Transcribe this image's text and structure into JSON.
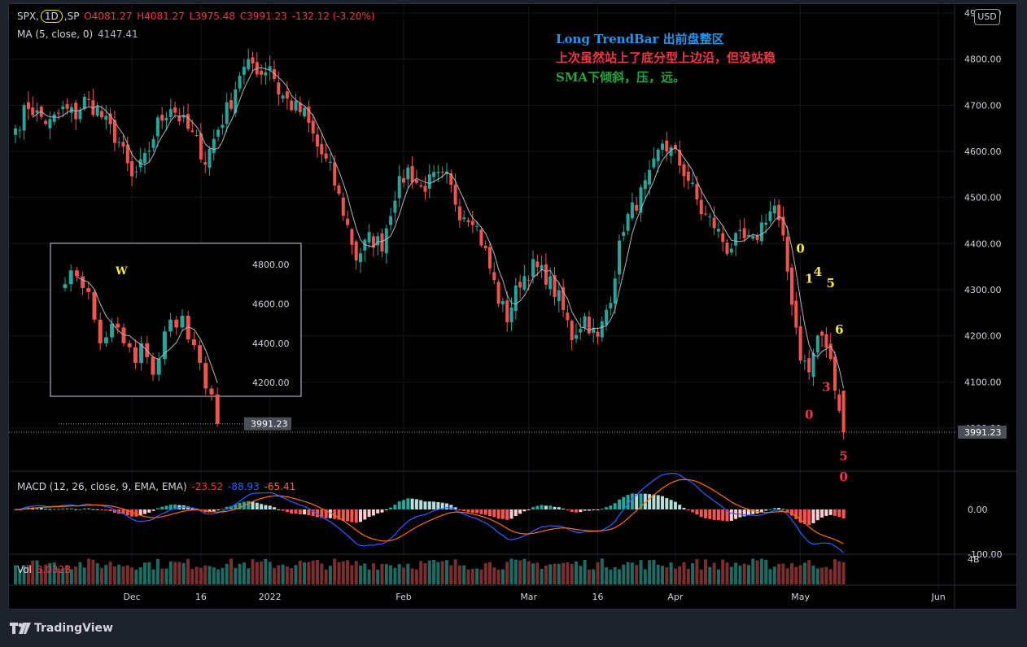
{
  "window": {
    "brand_label": "TradingView",
    "currency_button": "USD"
  },
  "legend": {
    "symbol": "SPX,",
    "interval": "1D",
    "exchange": ",SP",
    "open": "O4081.27",
    "high": "H4081.27",
    "low": "L3975.48",
    "close": "C3991.23",
    "change": "-132.12 (-3.20%)",
    "ma_label": "MA (5, close, 0)",
    "ma_value": "4147.41",
    "macd_label": "MACD (12, 26, close, 9, EMA, EMA)",
    "macd_hist": "-23.52",
    "macd_line": "-88.93",
    "macd_signal": "-65.41",
    "vol_label": "Vol",
    "vol_value": "3.032B"
  },
  "notes": [
    {
      "text": "Long TrendBar 出前盘整区",
      "color": "#2196f3"
    },
    {
      "text": "上次虽然站上了底分型上边沿，但没站稳",
      "color": "#f23645"
    },
    {
      "text": "SMA下倾斜，压，远。",
      "color": "#26a641"
    }
  ],
  "annotations": [
    {
      "text": "0",
      "color": "#ffeb3b",
      "bar": 182,
      "price": 4380
    },
    {
      "text": "1",
      "color": "#ffeb3b",
      "bar": 184,
      "price": 4315
    },
    {
      "text": "4",
      "color": "#ffeb3b",
      "bar": 186,
      "price": 4330
    },
    {
      "text": "5",
      "color": "#ffeb3b",
      "bar": 189,
      "price": 4305
    },
    {
      "text": "6",
      "color": "#ffeb3b",
      "bar": 191,
      "price": 4205
    },
    {
      "text": "3",
      "color": "#f23645",
      "bar": 188,
      "price": 4080
    },
    {
      "text": "0",
      "color": "#f23645",
      "bar": 184,
      "price": 4020
    },
    {
      "text": "5",
      "color": "#f23645",
      "bar": 192,
      "price": 3930
    },
    {
      "text": "0",
      "color": "#f23645",
      "bar": 192,
      "price": 3885
    }
  ],
  "colors": {
    "up": "#26a69a",
    "down": "#ef5350",
    "ma": "#b2b5be",
    "macd": "#2962ff",
    "signal": "#ff6d00",
    "vol_up": "#1e6b63",
    "vol_down": "#7a2e2e",
    "price_tag_bg": "#4a4e59"
  },
  "chart_data": {
    "type": "candlestick",
    "symbol": "SPX",
    "interval": "1D",
    "y_ticks": [
      "4900.00",
      "4800.00",
      "4700.00",
      "4600.00",
      "4500.00",
      "4400.00",
      "4300.00",
      "4200.00",
      "4100.00",
      "4000.00"
    ],
    "last_price_label": "3991.23",
    "x_ticks": [
      {
        "label": "Dec",
        "bar": 27
      },
      {
        "label": "16",
        "bar": 43
      },
      {
        "label": "2022",
        "bar": 59
      },
      {
        "label": "Feb",
        "bar": 90
      },
      {
        "label": "Mar",
        "bar": 119
      },
      {
        "label": "16",
        "bar": 135
      },
      {
        "label": "Apr",
        "bar": 153
      },
      {
        "label": "May",
        "bar": 182
      },
      {
        "label": "Jun",
        "bar": 214
      }
    ],
    "macd_ticks": [
      "0.00",
      "-100.00"
    ],
    "vol_tick": "4B",
    "keypoints": [
      [
        0,
        4650
      ],
      [
        3,
        4700
      ],
      [
        5,
        4680
      ],
      [
        8,
        4660
      ],
      [
        11,
        4690
      ],
      [
        14,
        4680
      ],
      [
        16,
        4710
      ],
      [
        19,
        4690
      ],
      [
        21,
        4660
      ],
      [
        24,
        4620
      ],
      [
        27,
        4540
      ],
      [
        30,
        4580
      ],
      [
        33,
        4660
      ],
      [
        36,
        4700
      ],
      [
        39,
        4660
      ],
      [
        42,
        4620
      ],
      [
        44,
        4580
      ],
      [
        47,
        4650
      ],
      [
        50,
        4710
      ],
      [
        52,
        4770
      ],
      [
        55,
        4790
      ],
      [
        57,
        4770
      ],
      [
        59,
        4790
      ],
      [
        61,
        4730
      ],
      [
        64,
        4700
      ],
      [
        67,
        4680
      ],
      [
        70,
        4610
      ],
      [
        73,
        4560
      ],
      [
        76,
        4470
      ],
      [
        79,
        4370
      ],
      [
        82,
        4410
      ],
      [
        85,
        4400
      ],
      [
        88,
        4510
      ],
      [
        91,
        4560
      ],
      [
        94,
        4520
      ],
      [
        97,
        4540
      ],
      [
        100,
        4540
      ],
      [
        103,
        4470
      ],
      [
        106,
        4460
      ],
      [
        109,
        4380
      ],
      [
        112,
        4280
      ],
      [
        114,
        4240
      ],
      [
        117,
        4320
      ],
      [
        120,
        4350
      ],
      [
        123,
        4330
      ],
      [
        126,
        4280
      ],
      [
        129,
        4200
      ],
      [
        132,
        4240
      ],
      [
        135,
        4190
      ],
      [
        138,
        4290
      ],
      [
        141,
        4440
      ],
      [
        144,
        4490
      ],
      [
        147,
        4540
      ],
      [
        150,
        4620
      ],
      [
        153,
        4590
      ],
      [
        156,
        4540
      ],
      [
        159,
        4470
      ],
      [
        162,
        4440
      ],
      [
        165,
        4390
      ],
      [
        168,
        4410
      ],
      [
        171,
        4400
      ],
      [
        174,
        4460
      ],
      [
        176,
        4480
      ],
      [
        178,
        4400
      ],
      [
        180,
        4280
      ],
      [
        182,
        4160
      ],
      [
        184,
        4120
      ],
      [
        186,
        4200
      ],
      [
        188,
        4180
      ],
      [
        190,
        4100
      ],
      [
        192,
        3991
      ]
    ],
    "inset": {
      "interval": "weekly",
      "label": "W",
      "y_ticks": [
        "4800.00",
        "4600.00",
        "4400.00",
        "4200.00"
      ],
      "last_price_label": "3991.23",
      "closes": [
        4700,
        4770,
        4740,
        4680,
        4660,
        4520,
        4400,
        4430,
        4500,
        4480,
        4400,
        4380,
        4300,
        4400,
        4330,
        4240,
        4320,
        4460,
        4520,
        4480,
        4540,
        4420,
        4390,
        4300,
        4170,
        4140,
        3991
      ]
    }
  }
}
